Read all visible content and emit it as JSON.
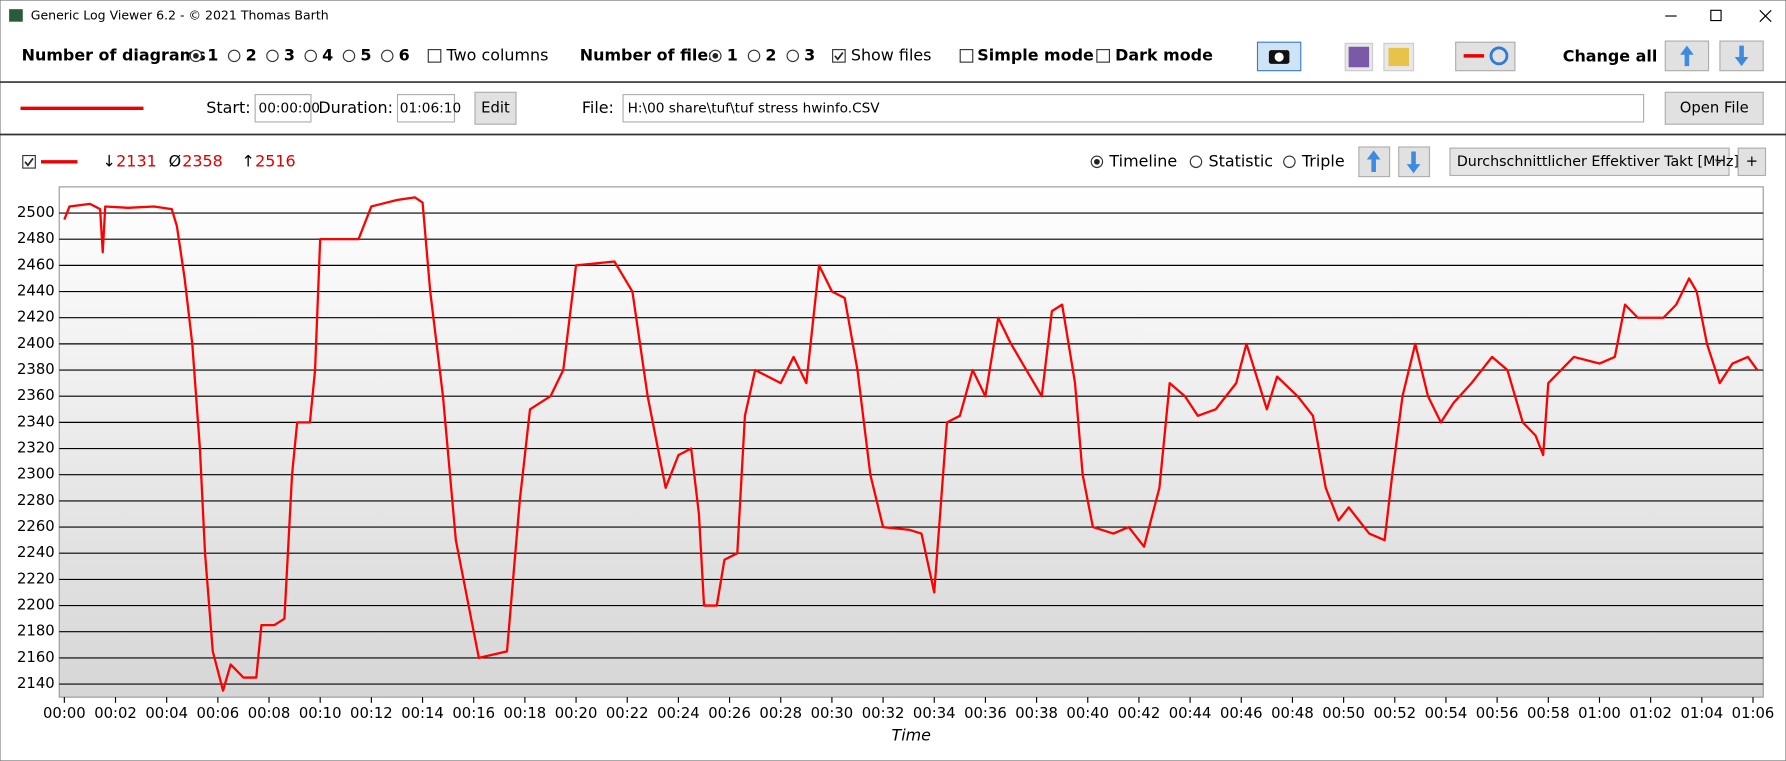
{
  "window": {
    "title": "Generic Log Viewer 6.2 - © 2021 Thomas Barth"
  },
  "toolbar": {
    "diagrams_label": "Number of diagrams",
    "diagram_options": [
      "1",
      "2",
      "3",
      "4",
      "5",
      "6"
    ],
    "diagrams_selected": 0,
    "two_columns": "Two columns",
    "two_columns_checked": false,
    "files_label": "Number of files",
    "file_options": [
      "1",
      "2",
      "3"
    ],
    "files_selected": 0,
    "show_files": "Show files",
    "show_files_checked": true,
    "simple_mode": "Simple mode",
    "simple_mode_checked": false,
    "dark_mode": "Dark mode",
    "dark_mode_checked": false,
    "change_all": "Change all"
  },
  "file_bar": {
    "start_label": "Start:",
    "start": "00:00:00",
    "duration_label": "Duration:",
    "duration": "01:06:10",
    "edit": "Edit",
    "file_label": "File:",
    "file": "H:\\00 share\\tuf\\tuf stress hwinfo.CSV",
    "open": "Open File"
  },
  "diagram_bar": {
    "stats": [
      {
        "symbol": "↓",
        "value": 2131
      },
      {
        "symbol": "Ø",
        "value": 2358
      },
      {
        "symbol": "↑",
        "value": 2516
      }
    ],
    "views": [
      "Timeline",
      "Statistic",
      "Triple"
    ],
    "view_selected": 0,
    "channel": "Durchschnittlicher Effektiver Takt [MHz]",
    "add": "+"
  },
  "chart_data": {
    "type": "line",
    "x_label": "Time",
    "x": [
      0,
      0.2,
      1,
      1.4,
      1.5,
      1.6,
      2.5,
      3.5,
      4.2,
      4.4,
      4.7,
      5,
      5.3,
      5.5,
      5.8,
      6,
      6.2,
      6.5,
      7,
      7.5,
      7.7,
      8.2,
      8.6,
      8.9,
      9.1,
      9.6,
      9.8,
      10,
      11.5,
      12,
      13,
      13.7,
      14,
      14.3,
      14.8,
      15.3,
      15.8,
      16.2,
      17.3,
      17.8,
      18.2,
      19,
      19.5,
      20,
      21.5,
      22.2,
      22.8,
      23.5,
      24,
      24.5,
      24.8,
      25,
      25.5,
      25.8,
      26.3,
      26.6,
      27,
      28,
      28.5,
      29,
      29.5,
      30,
      30.5,
      31,
      31.5,
      32,
      33,
      33.5,
      34,
      34.5,
      35,
      35.5,
      36,
      36.5,
      37,
      37.6,
      38.2,
      38.6,
      39,
      39.5,
      39.8,
      40.2,
      41,
      41.6,
      42.2,
      42.8,
      43.2,
      43.8,
      44.3,
      45,
      45.8,
      46.2,
      47,
      47.4,
      48.2,
      48.8,
      49.3,
      49.8,
      50.2,
      51,
      51.6,
      51.9,
      52.3,
      52.8,
      53.3,
      53.8,
      54.3,
      55,
      55.8,
      56.4,
      57,
      57.5,
      57.8,
      58,
      58.5,
      59,
      60,
      60.6,
      61,
      61.5,
      62.5,
      63,
      63.5,
      63.8,
      64.2,
      64.7,
      65.2,
      65.8,
      66.17
    ],
    "series": [
      {
        "color": "#ff0000",
        "values": [
          2495,
          2505,
          2507,
          2503,
          2470,
          2505,
          2504,
          2505,
          2503,
          2490,
          2450,
          2400,
          2320,
          2240,
          2165,
          2150,
          2135,
          2155,
          2145,
          2145,
          2185,
          2185,
          2190,
          2300,
          2340,
          2340,
          2380,
          2480,
          2480,
          2505,
          2510,
          2512,
          2508,
          2440,
          2360,
          2250,
          2200,
          2160,
          2165,
          2280,
          2350,
          2360,
          2380,
          2460,
          2463,
          2440,
          2360,
          2290,
          2315,
          2320,
          2270,
          2200,
          2200,
          2235,
          2240,
          2345,
          2380,
          2370,
          2390,
          2370,
          2460,
          2440,
          2435,
          2380,
          2300,
          2260,
          2258,
          2255,
          2210,
          2340,
          2345,
          2380,
          2360,
          2420,
          2400,
          2380,
          2360,
          2425,
          2430,
          2370,
          2300,
          2260,
          2255,
          2260,
          2245,
          2290,
          2370,
          2360,
          2345,
          2350,
          2370,
          2400,
          2350,
          2375,
          2360,
          2345,
          2290,
          2265,
          2275,
          2255,
          2250,
          2300,
          2360,
          2400,
          2360,
          2340,
          2355,
          2370,
          2390,
          2380,
          2340,
          2330,
          2315,
          2370,
          2380,
          2390,
          2385,
          2390,
          2430,
          2420,
          2420,
          2430,
          2450,
          2440,
          2400,
          2370,
          2385,
          2390,
          2380
        ]
      }
    ],
    "xlim": [
      -0.2,
      66.4
    ],
    "ylim": [
      2130,
      2520
    ],
    "xticks": [
      {
        "value": 0,
        "label": "00:00"
      },
      {
        "value": 2,
        "label": "00:02"
      },
      {
        "value": 4,
        "label": "00:04"
      },
      {
        "value": 6,
        "label": "00:06"
      },
      {
        "value": 8,
        "label": "00:08"
      },
      {
        "value": 10,
        "label": "00:10"
      },
      {
        "value": 12,
        "label": "00:12"
      },
      {
        "value": 14,
        "label": "00:14"
      },
      {
        "value": 16,
        "label": "00:16"
      },
      {
        "value": 18,
        "label": "00:18"
      },
      {
        "value": 20,
        "label": "00:20"
      },
      {
        "value": 22,
        "label": "00:22"
      },
      {
        "value": 24,
        "label": "00:24"
      },
      {
        "value": 26,
        "label": "00:26"
      },
      {
        "value": 28,
        "label": "00:28"
      },
      {
        "value": 30,
        "label": "00:30"
      },
      {
        "value": 32,
        "label": "00:32"
      },
      {
        "value": 34,
        "label": "00:34"
      },
      {
        "value": 36,
        "label": "00:36"
      },
      {
        "value": 38,
        "label": "00:38"
      },
      {
        "value": 40,
        "label": "00:40"
      },
      {
        "value": 42,
        "label": "00:42"
      },
      {
        "value": 44,
        "label": "00:44"
      },
      {
        "value": 46,
        "label": "00:46"
      },
      {
        "value": 48,
        "label": "00:48"
      },
      {
        "value": 50,
        "label": "00:50"
      },
      {
        "value": 52,
        "label": "00:52"
      },
      {
        "value": 54,
        "label": "00:54"
      },
      {
        "value": 56,
        "label": "00:56"
      },
      {
        "value": 58,
        "label": "00:58"
      },
      {
        "value": 60,
        "label": "01:00"
      },
      {
        "value": 62,
        "label": "01:02"
      },
      {
        "value": 64,
        "label": "01:04"
      },
      {
        "value": 66,
        "label": "01:06"
      }
    ],
    "yticks": [
      2140,
      2160,
      2180,
      2200,
      2220,
      2240,
      2260,
      2280,
      2300,
      2320,
      2340,
      2360,
      2380,
      2400,
      2420,
      2440,
      2460,
      2480,
      2500
    ],
    "grid": true
  }
}
